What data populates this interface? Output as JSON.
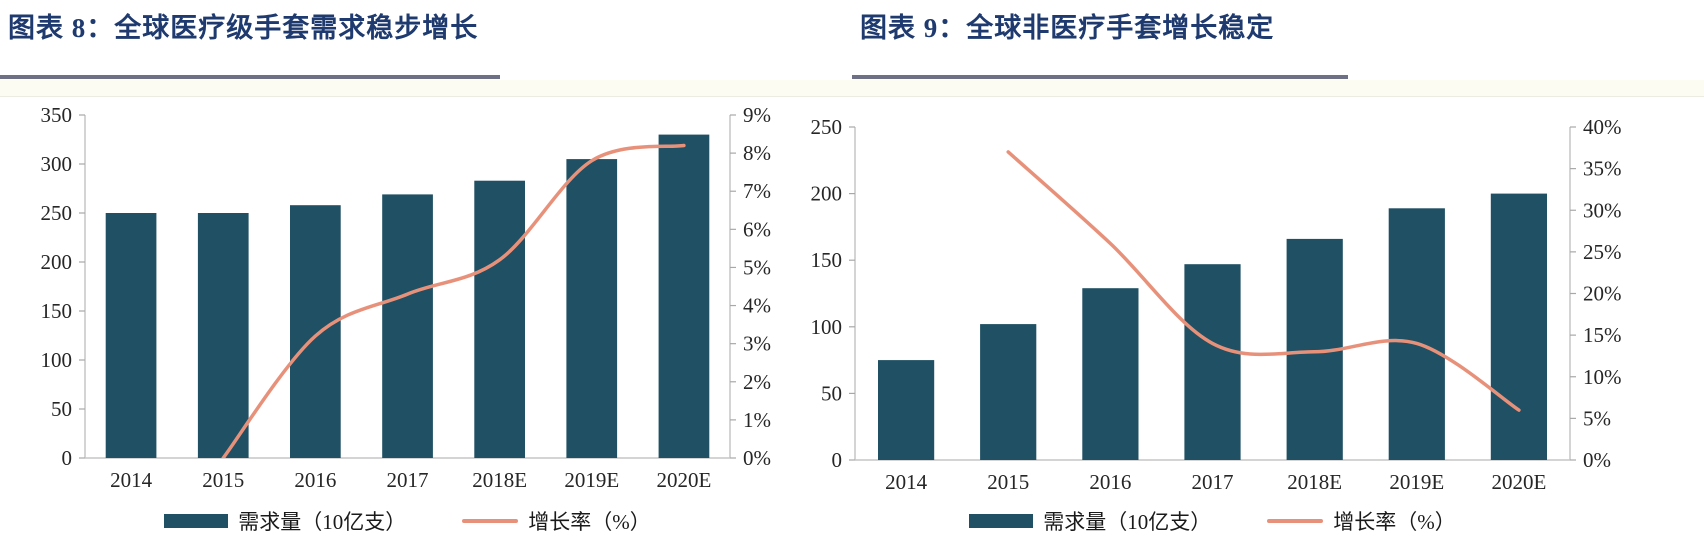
{
  "colors": {
    "bar": "#1f5063",
    "line": "#e8917a",
    "title": "#1e3a6e",
    "underline": "#6e7186",
    "axis_text": "#262626",
    "axis_line": "#c6c6c6",
    "tick": "#a8a8a8"
  },
  "chart_data": [
    {
      "type": "bar+line",
      "title": "图表 8：全球医疗级手套需求稳步增长",
      "categories": [
        "2014",
        "2015",
        "2016",
        "2017",
        "2018E",
        "2019E",
        "2020E"
      ],
      "series": [
        {
          "name": "需求量（10亿支）",
          "type": "bar",
          "axis": "left",
          "values": [
            250,
            250,
            258,
            269,
            283,
            305,
            330
          ]
        },
        {
          "name": "增长率（%）",
          "type": "line",
          "axis": "right",
          "values": [
            null,
            0,
            3.2,
            4.3,
            5.2,
            7.8,
            8.2
          ]
        }
      ],
      "left_axis": {
        "min": 0,
        "max": 350,
        "step": 50,
        "suffix": ""
      },
      "right_axis": {
        "min": 0,
        "max": 9,
        "step": 1,
        "suffix": "%"
      },
      "grid": false,
      "legend_position": "bottom"
    },
    {
      "type": "bar+line",
      "title": "图表 9：全球非医疗手套增长稳定",
      "categories": [
        "2014",
        "2015",
        "2016",
        "2017",
        "2018E",
        "2019E",
        "2020E"
      ],
      "series": [
        {
          "name": "需求量（10亿支）",
          "type": "bar",
          "axis": "left",
          "values": [
            75,
            102,
            129,
            147,
            166,
            189,
            200
          ]
        },
        {
          "name": "增长率（%）",
          "type": "line",
          "axis": "right",
          "values": [
            null,
            37,
            26,
            14,
            13,
            14,
            6
          ]
        }
      ],
      "left_axis": {
        "min": 0,
        "max": 250,
        "step": 50,
        "suffix": ""
      },
      "right_axis": {
        "min": 0,
        "max": 40,
        "step": 5,
        "suffix": "%"
      },
      "grid": false,
      "legend_position": "bottom"
    }
  ]
}
